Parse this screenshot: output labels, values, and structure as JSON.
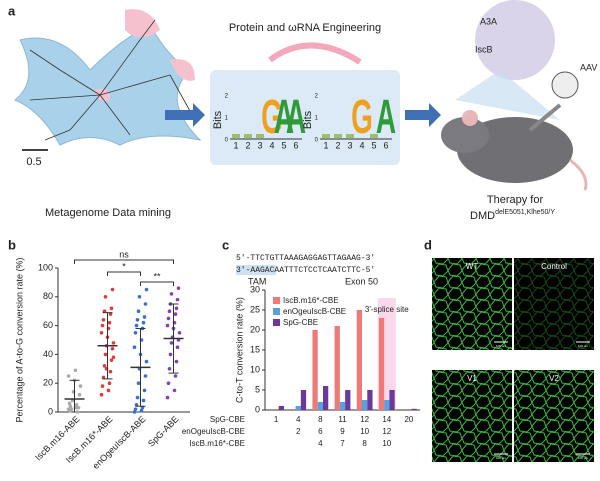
{
  "panel_a": {
    "letter": "a",
    "engineering": "Protein and ωRNA Engineering",
    "scale": "0.5",
    "mining": "Metagenome Data mining",
    "logos": [
      {
        "axis": "Bits",
        "yticks": [
          "2",
          "1",
          "0"
        ],
        "positions": [
          "1",
          "2",
          "3",
          "4",
          "5",
          "6"
        ],
        "letters": [
          "G",
          "A",
          "A"
        ]
      },
      {
        "axis": "Bits",
        "yticks": [
          "2",
          "1",
          "0"
        ],
        "positions": [
          "1",
          "2",
          "3",
          "4",
          "5",
          "6"
        ],
        "letters": [
          "G",
          "A"
        ]
      }
    ],
    "a3a": "A3A",
    "iscb": "IscB",
    "aav": "AAV",
    "therapy": "Therapy for",
    "dmd": "DMD",
    "dmd_sup": "delE5051,Klhe50/Y"
  },
  "chart_data": [
    {
      "type": "strip",
      "letter": "b",
      "ylabel": "Percentage of A-to-G conversion rate (%)",
      "ylim": [
        0,
        100
      ],
      "yticks": [
        0,
        20,
        40,
        60,
        80,
        100
      ],
      "categories": [
        "IscB.m16-ABE",
        "IscB.m16*-ABE",
        "enOgeuIscB-ABE",
        "SpG-ABE"
      ],
      "groups": [
        {
          "color": "#aaaaaa",
          "mean": 9,
          "error": 13,
          "points": [
            2,
            3,
            1,
            5,
            4,
            0,
            2,
            3,
            8,
            12,
            14,
            18,
            22,
            25,
            29,
            6,
            3,
            1
          ]
        },
        {
          "color": "#e03a3a",
          "mean": 46,
          "error": 23,
          "points": [
            12,
            15,
            18,
            20,
            24,
            28,
            32,
            36,
            40,
            44,
            46,
            48,
            52,
            55,
            58,
            60,
            62,
            64,
            68,
            70,
            72,
            80,
            85,
            30,
            38
          ]
        },
        {
          "color": "#3a6fd0",
          "mean": 31,
          "error": 27,
          "points": [
            0,
            1,
            2,
            3,
            5,
            8,
            10,
            15,
            20,
            25,
            30,
            35,
            40,
            45,
            50,
            55,
            58,
            60,
            62,
            64,
            66,
            70,
            75,
            80,
            85
          ]
        },
        {
          "color": "#8a3fb0",
          "mean": 51,
          "error": 24,
          "points": [
            10,
            15,
            20,
            25,
            30,
            35,
            40,
            45,
            48,
            50,
            52,
            55,
            58,
            60,
            62,
            65,
            68,
            70,
            72,
            75,
            78,
            82,
            86
          ]
        }
      ],
      "significance": [
        "ns",
        "*",
        "**"
      ]
    },
    {
      "type": "bar",
      "letter": "c",
      "ylabel": "C-to-T conversion rate (%)",
      "ylim": [
        0,
        30
      ],
      "yticks": [
        0,
        5,
        10,
        15,
        20,
        25,
        30
      ],
      "sequence_top": "5'-TTCTGTTAAAGAGGAGTTAGAAG-3'",
      "sequence_bottom": "3'-AAGACAATTTCTCCTCAATCTTC-5'",
      "tam": "TAM",
      "exon": "Exon 50",
      "highlight": "3'-splice site",
      "series": [
        {
          "name": "IscB.m16*-CBE",
          "color": "#ee7a78",
          "values": [
            null,
            null,
            20,
            21,
            25,
            23,
            null
          ],
          "site_labels": [
            null,
            null,
            4,
            7,
            8,
            10,
            null
          ]
        },
        {
          "name": "enOgeuIscB-CBE",
          "color": "#5a9fe0",
          "values": [
            null,
            1,
            2,
            2,
            2.5,
            2.5,
            null
          ],
          "site_labels": [
            null,
            2,
            6,
            9,
            10,
            12,
            null
          ]
        },
        {
          "name": "SpG-CBE",
          "color": "#6a3a9a",
          "values": [
            1,
            5,
            6,
            5,
            5,
            5,
            0.3
          ],
          "site_labels": [
            1,
            4,
            8,
            11,
            12,
            14,
            20
          ]
        }
      ],
      "row_order": [
        2,
        1,
        0
      ]
    }
  ],
  "panel_d": {
    "letter": "d",
    "images": [
      "WT",
      "Control",
      "V1",
      "V2"
    ],
    "scalebar": "100 μm"
  }
}
